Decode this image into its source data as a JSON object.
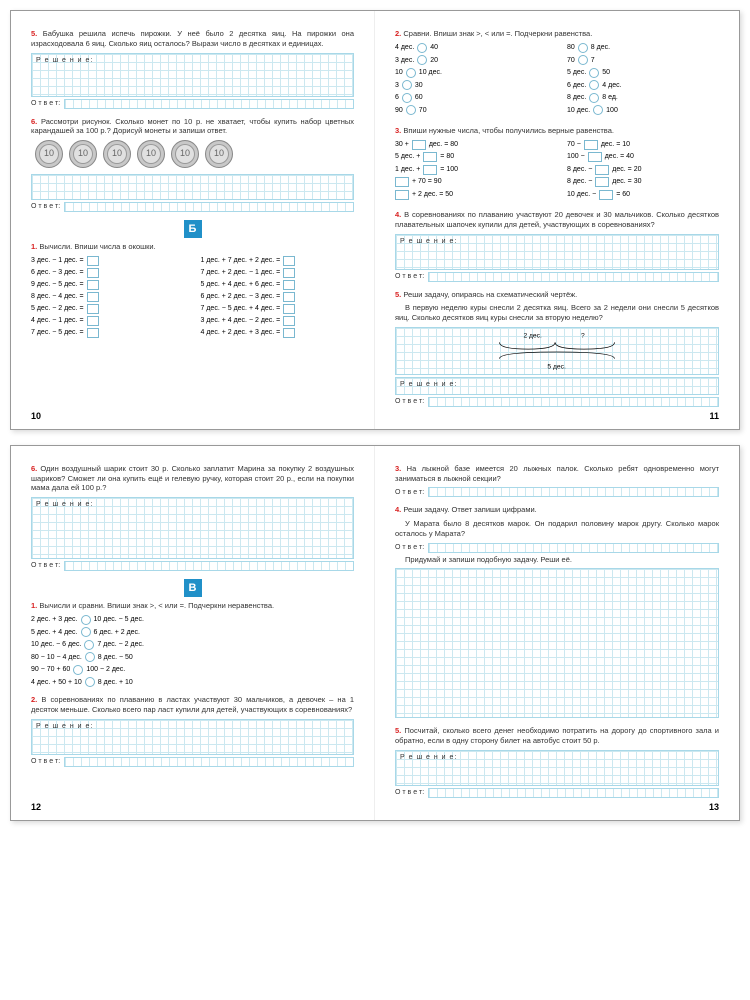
{
  "colors": {
    "task_number": "#d82020",
    "section_bg": "#2090c8",
    "grid_line": "#cce8f0",
    "grid_border": "#a8d8e8",
    "box_border": "#7ab8d0"
  },
  "labels": {
    "solution": "Р е ш е н и е:",
    "answer": "О т в е т:"
  },
  "spread1": {
    "left": {
      "page_num": "10",
      "t5": {
        "num": "5.",
        "text": "Бабушка решила испечь пирожки. У неё было 2 десятка яиц. На пирожки она израсходовала 6 яиц. Сколько яиц осталось? Вырази число в десятках и единицах."
      },
      "t6": {
        "num": "6.",
        "text": "Рассмотри рисунок. Сколько монет по 10 р. не хватает, чтобы купить набор цветных карандашей за 100 р.? Дорисуй монеты и запиши ответ."
      },
      "coin_label": "10",
      "section": "Б",
      "t1": {
        "num": "1.",
        "text": "Вычисли. Впиши числа в окошки."
      },
      "calc_left": [
        "3 дес. − 1 дес. =",
        "6 дес. − 3 дес. =",
        "9 дес. − 5 дес. =",
        "8 дес. − 4 дес. =",
        "5 дес. − 2 дес. =",
        "4 дес. − 1 дес. =",
        "7 дес. − 5 дес. ="
      ],
      "calc_right": [
        "1 дес. + 7 дес. + 2 дес. =",
        "7 дес. + 2 дес. − 1 дес. =",
        "5 дес. + 4 дес. + 6 дес. =",
        "6 дес. + 2 дес. − 3 дес. =",
        "7 дес. − 5 дес. + 4 дес. =",
        "3 дес. + 4 дес. − 2 дес. =",
        "4 дес. + 2 дес. + 3 дес. ="
      ]
    },
    "right": {
      "page_num": "11",
      "t2": {
        "num": "2.",
        "text": "Сравни. Впиши знак >, < или =. Подчеркни равенства."
      },
      "cmp_rows_left": [
        [
          "4 дес.",
          "40"
        ],
        [
          "3 дес.",
          "20"
        ],
        [
          "10",
          "10 дес."
        ],
        [
          "3",
          "30"
        ],
        [
          "6",
          "60"
        ],
        [
          "90",
          "70"
        ]
      ],
      "cmp_rows_right": [
        [
          "80",
          "8 дес."
        ],
        [
          "70",
          "7"
        ],
        [
          "5 дес.",
          "50"
        ],
        [
          "6 дес.",
          "4 дес."
        ],
        [
          "8 дес.",
          "8 ед."
        ],
        [
          "10 дес.",
          "100"
        ]
      ],
      "t3": {
        "num": "3.",
        "text": "Впиши нужные числа, чтобы получились верные равенства."
      },
      "eq_left": [
        [
          "30 +",
          "дес. = 80"
        ],
        [
          "5 дес. +",
          "= 80"
        ],
        [
          "1 дес. +",
          "= 100"
        ],
        [
          "",
          "+ 70 = 90"
        ],
        [
          "",
          "+ 2 дес. = 50"
        ]
      ],
      "eq_right": [
        [
          "70 −",
          "дес. = 10"
        ],
        [
          "100 −",
          "дес. = 40"
        ],
        [
          "8 дес. −",
          "дес. = 20"
        ],
        [
          "8 дес. −",
          "дес. = 30"
        ],
        [
          "10 дес. −",
          "= 60"
        ]
      ],
      "t4": {
        "num": "4.",
        "text": "В соревнованиях по плаванию участвуют 20 девочек и 30 мальчиков. Сколько десятков плавательных шапочек купили для детей, участвующих в соревнованиях?"
      },
      "t5": {
        "num": "5.",
        "text": "Реши задачу, опираясь на схематический чертёж.",
        "text2": "В первую неделю куры снесли 2 десятка яиц. Всего за 2 недели они снесли 5 десятков яиц. Сколько десятков яиц куры снесли за вторую неделю?"
      },
      "diagram": {
        "top_left": "2 дес.",
        "top_right": "?",
        "bottom": "5 дес."
      }
    }
  },
  "spread2": {
    "left": {
      "page_num": "12",
      "t6": {
        "num": "6.",
        "text": "Один воздушный шарик стоит 30 р. Сколько заплатит Марина за покупку 2 воздушных шариков? Сможет ли она купить ещё и гелевую ручку, которая стоит 20 р., если на покупки мама дала ей 100 р.?"
      },
      "section": "В",
      "t1": {
        "num": "1.",
        "text": "Вычисли и сравни. Впиши знак >, < или =. Подчеркни неравенства."
      },
      "cmp2": [
        [
          "2 дес. + 3 дес.",
          "10 дес. − 5 дес."
        ],
        [
          "5 дес. + 4 дес.",
          "6 дес. + 2 дес."
        ],
        [
          "10 дес. − 6 дес.",
          "7 дес. − 2 дес."
        ],
        [
          "80 − 10 − 4 дес.",
          "8 дес. − 50"
        ],
        [
          "90 − 70 + 60",
          "100 − 2 дес."
        ],
        [
          "4 дес. + 50 + 10",
          "8 дес. + 10"
        ]
      ],
      "t2": {
        "num": "2.",
        "text": "В соревнованиях по плаванию в ластах участвуют 30 мальчиков, а девочек – на 1 десяток меньше. Сколько всего пар ласт купили для детей, участвующих в соревнованиях?"
      }
    },
    "right": {
      "page_num": "13",
      "t3": {
        "num": "3.",
        "text": "На лыжной базе имеется 20 лыжных палок. Сколько ребят одновременно могут заниматься в лыжной секции?"
      },
      "t4": {
        "num": "4.",
        "text": "Реши задачу. Ответ запиши цифрами.",
        "text2": "У Марата было 8 десятков марок. Он подарил половину марок другу. Сколько марок осталось у Марата?",
        "text3": "Придумай и запиши подобную задачу. Реши её."
      },
      "t5": {
        "num": "5.",
        "text": "Посчитай, сколько всего денег необходимо потратить на дорогу до спортивного зала и обратно, если в одну сторону билет на автобус стоит 50 р."
      }
    }
  }
}
